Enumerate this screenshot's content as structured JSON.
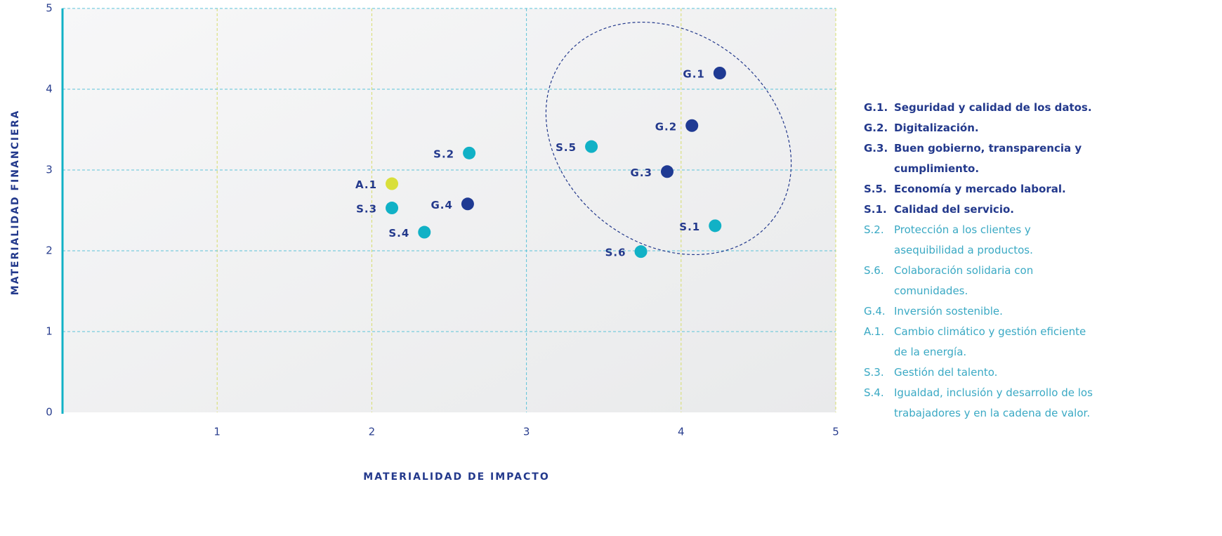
{
  "chart_data": {
    "type": "scatter",
    "xlabel": "MATERIALIDAD DE IMPACTO",
    "ylabel": "MATERIALIDAD FINANCIERA",
    "xlim": [
      0,
      5
    ],
    "xticks": [
      1,
      2,
      3,
      4,
      5
    ],
    "ylim": [
      0,
      5
    ],
    "yticks": [
      0,
      1,
      2,
      3,
      4,
      5
    ],
    "grid": true,
    "labels": [
      "G.1",
      "G.2",
      "G.3",
      "S.5",
      "S.1",
      "S.6",
      "S.2",
      "A.1",
      "S.3",
      "G.4",
      "S.4"
    ],
    "x": [
      4.25,
      4.07,
      3.91,
      3.42,
      4.22,
      3.74,
      2.63,
      2.13,
      2.13,
      2.62,
      2.34
    ],
    "values": [
      4.2,
      3.55,
      2.98,
      3.29,
      2.31,
      1.99,
      3.21,
      2.83,
      2.53,
      2.58,
      2.23
    ],
    "colors": [
      "#1f3a93",
      "#1f3a93",
      "#1f3a93",
      "#11b1c6",
      "#11b1c6",
      "#11b1c6",
      "#11b1c6",
      "#d9df3a",
      "#11b1c6",
      "#1f3a93",
      "#11b1c6"
    ],
    "legend": [
      {
        "code": "G.1.",
        "text": "Seguridad y calidad de los datos.",
        "bold": true
      },
      {
        "code": "G.2.",
        "text": "Digitalización.",
        "bold": true
      },
      {
        "code": "G.3.",
        "text": "Buen gobierno, transparencia y cumplimiento.",
        "bold": true
      },
      {
        "code": "S.5.",
        "text": "Economía y mercado laboral.",
        "bold": true
      },
      {
        "code": "S.1.",
        "text": "Calidad del servicio.",
        "bold": true
      },
      {
        "code": "S.2.",
        "text": "Protección a los clientes y asequibilidad a productos.",
        "bold": false
      },
      {
        "code": "S.6.",
        "text": "Colaboración solidaria con comunidades.",
        "bold": false
      },
      {
        "code": "G.4.",
        "text": "Inversión sostenible.",
        "bold": false
      },
      {
        "code": "A.1.",
        "text": "Cambio climático y gestión eficiente de la energía.",
        "bold": false
      },
      {
        "code": "S.3.",
        "text": "Gestión del talento.",
        "bold": false
      },
      {
        "code": "S.4.",
        "text": "Igualdad, inclusión y desarrollo de los trabajadores y en la cadena de valor.",
        "bold": false
      }
    ]
  }
}
